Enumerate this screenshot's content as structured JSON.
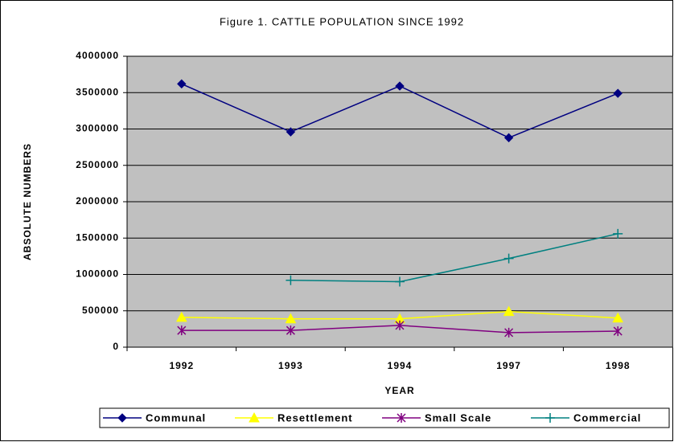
{
  "chart_data": {
    "type": "line",
    "title": "Figure 1. CATTLE POPULATION SINCE 1992",
    "x_label": "YEAR",
    "y_label": "ABSOLUTE NUMBERS",
    "categories": [
      "1992",
      "1993",
      "1994",
      "1997",
      "1998"
    ],
    "series": [
      {
        "name": "Communal",
        "color": "#000080",
        "marker": "diamond",
        "values": [
          3620000,
          2960000,
          3590000,
          2880000,
          3490000
        ]
      },
      {
        "name": "Resettlement",
        "color": "#ffff00",
        "marker": "triangle",
        "values": [
          410000,
          390000,
          390000,
          490000,
          400000
        ]
      },
      {
        "name": "Small Scale",
        "color": "#800080",
        "marker": "star",
        "values": [
          230000,
          230000,
          300000,
          200000,
          220000
        ]
      },
      {
        "name": "Commercial",
        "color": "#008080",
        "marker": "plus",
        "values": [
          null,
          920000,
          900000,
          1220000,
          1560000
        ]
      }
    ],
    "ylim": [
      0,
      4000000
    ],
    "yticks": [
      0,
      500000,
      1000000,
      1500000,
      2000000,
      2500000,
      3000000,
      3500000,
      4000000
    ],
    "grid": true,
    "legend": "bottom",
    "plot_background": "#c0c0c0"
  }
}
